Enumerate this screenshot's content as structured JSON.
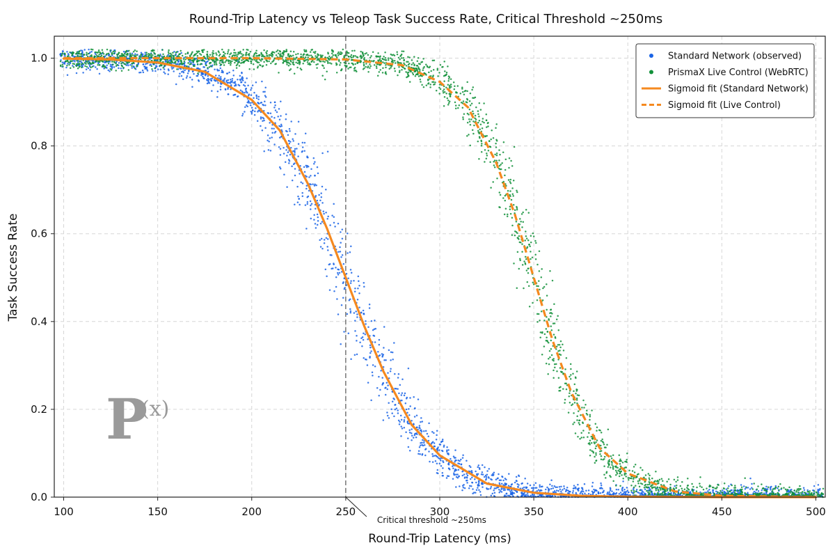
{
  "chart_data": {
    "type": "scatter",
    "title": "Round-Trip Latency vs Teleop Task Success Rate, Critical Threshold ~250ms",
    "xlabel": "Round-Trip Latency (ms)",
    "ylabel": "Task Success Rate",
    "xlim": [
      95,
      505
    ],
    "ylim": [
      0.0,
      1.05
    ],
    "x_ticks": [
      "100",
      "150",
      "200",
      "250",
      "300",
      "350",
      "400",
      "450",
      "500"
    ],
    "y_ticks": [
      "0.0",
      "0.2",
      "0.4",
      "0.6",
      "0.8",
      "1.0"
    ],
    "grid": true,
    "legend_position": "top-right",
    "series": [
      {
        "name": "Standard Network (observed)",
        "kind": "scatter",
        "color": "#1a64e6",
        "sigmoid_midpoint_ms": 250,
        "sigmoid_scale_ms": 22
      },
      {
        "name": "PrismaX Live Control (WebRTC)",
        "kind": "scatter",
        "color": "#12913a",
        "sigmoid_midpoint_ms": 350,
        "sigmoid_scale_ms": 17
      },
      {
        "name": "Sigmoid fit (Standard Network)",
        "kind": "line",
        "style": "solid",
        "color": "#f5891f",
        "x": [
          100,
          125,
          150,
          175,
          200,
          215,
          230,
          240,
          250,
          260,
          270,
          285,
          300,
          325,
          350,
          375,
          400,
          450,
          500
        ],
        "y": [
          0.999,
          0.997,
          0.99,
          0.969,
          0.905,
          0.835,
          0.713,
          0.612,
          0.5,
          0.388,
          0.287,
          0.165,
          0.095,
          0.031,
          0.01,
          0.003,
          0.001,
          0.0,
          0.0
        ]
      },
      {
        "name": "Sigmoid fit (Live Control)",
        "kind": "line",
        "style": "dashed",
        "color": "#f5891f",
        "x": [
          100,
          200,
          250,
          280,
          300,
          315,
          330,
          340,
          350,
          360,
          370,
          385,
          400,
          425,
          450,
          500
        ],
        "y": [
          1.0,
          1.0,
          0.997,
          0.984,
          0.946,
          0.888,
          0.762,
          0.643,
          0.5,
          0.357,
          0.238,
          0.112,
          0.054,
          0.013,
          0.003,
          0.0
        ]
      }
    ],
    "threshold": {
      "x": 250,
      "label": "Critical threshold ~250ms"
    }
  }
}
